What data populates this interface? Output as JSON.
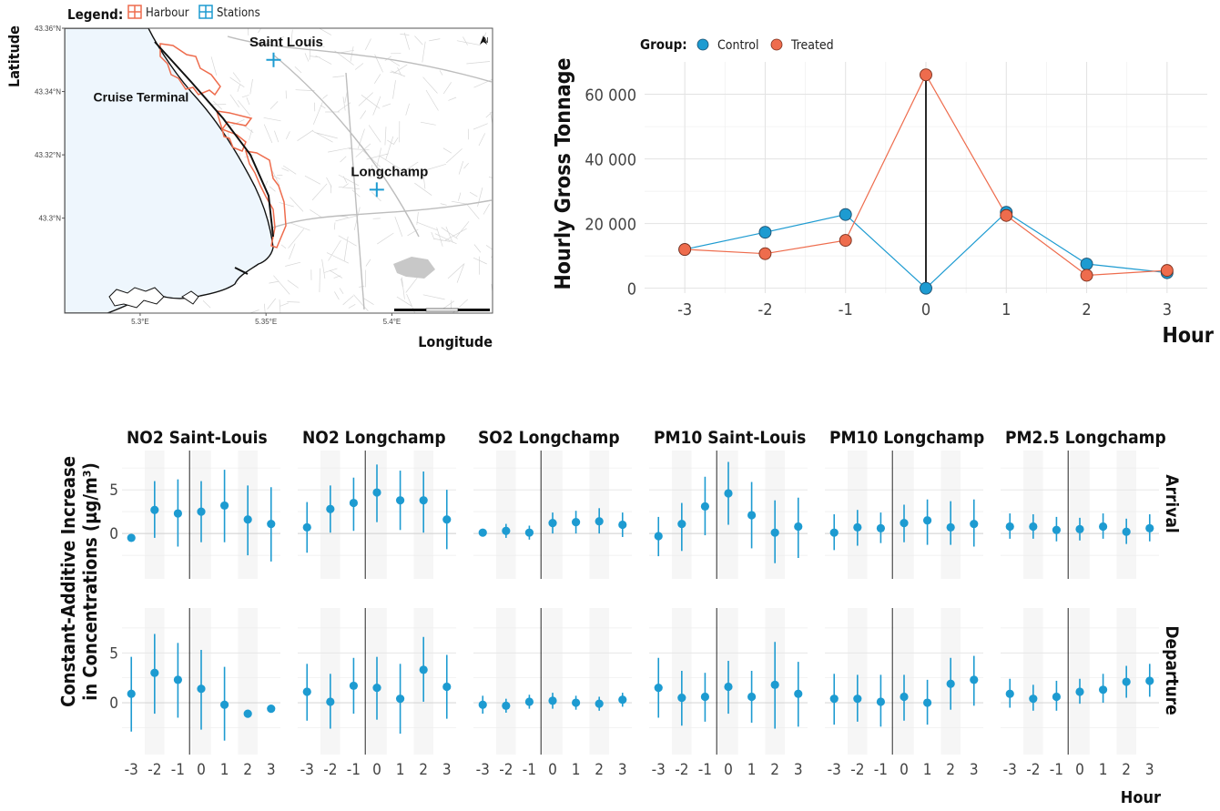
{
  "chart_data": [
    {
      "type": "map",
      "legend": {
        "title": "Legend:",
        "entries": [
          {
            "name": "Harbour",
            "color": "#ee6c4d"
          },
          {
            "name": "Stations",
            "color": "#1d9bd1"
          }
        ],
        "placement": "top-left"
      },
      "xlabel": "Longitude",
      "ylabel": "Latitude",
      "lon_ticks": [
        "5.3°E",
        "5.35°E",
        "5.4°E"
      ],
      "lat_ticks": [
        "43.36°N",
        "43.34°N",
        "43.32°N",
        "43.3°N"
      ],
      "xlim": [
        5.27,
        5.44
      ],
      "ylim": [
        43.27,
        43.36
      ],
      "lon_tick_values": [
        5.3,
        5.35,
        5.4
      ],
      "lat_tick_values": [
        43.36,
        43.34,
        43.32,
        43.3
      ],
      "places": [
        {
          "name": "Saint Louis",
          "lon": 5.353,
          "lat": 43.35,
          "kind": "station"
        },
        {
          "name": "Longchamp",
          "lon": 5.394,
          "lat": 43.309,
          "kind": "station"
        },
        {
          "name": "Cruise Terminal",
          "lon": 5.3,
          "lat": 43.34,
          "kind": "place"
        }
      ],
      "north_arrow": "N",
      "colors": {
        "sea": "#eef6fd",
        "land": "#ffffff",
        "roads": "#d8d8d8"
      }
    },
    {
      "type": "line",
      "legend": {
        "title": "Group:",
        "placement": "top-left"
      },
      "x": [
        -3,
        -2,
        -1,
        0,
        1,
        2,
        3
      ],
      "series": [
        {
          "name": "Control",
          "color": "#1d9bd1",
          "values": [
            12000,
            17300,
            22800,
            0,
            23500,
            7500,
            4800
          ]
        },
        {
          "name": "Treated",
          "color": "#ee6c4d",
          "values": [
            12000,
            10700,
            14800,
            66000,
            22500,
            4000,
            5500
          ]
        }
      ],
      "xlabel": "Hour",
      "ylabel": "Hourly Gross Tonnage",
      "ylim": [
        -1500,
        70000
      ],
      "yticks": [
        0,
        20000,
        40000,
        60000
      ],
      "ytick_labels": [
        "0",
        "20 000",
        "40 000",
        "60 000"
      ],
      "xtick_labels": [
        "-3",
        "-2",
        "-1",
        "0",
        "1",
        "2",
        "3"
      ],
      "vline_x": 0,
      "grid": true
    },
    {
      "type": "scatter",
      "subtype": "pointrange-facets",
      "xlabel": "Hour",
      "ylabel_line1": "Constant-Additive Increase",
      "ylabel_line2": "in Concentrations (µg/m³)",
      "columns": [
        "NO2 Saint-Louis",
        "NO2 Longchamp",
        "SO2 Longchamp",
        "PM10 Saint-Louis",
        "PM10 Longchamp",
        "PM2.5 Longchamp"
      ],
      "rows": [
        "Arrival",
        "Departure"
      ],
      "x": [
        -3,
        -2,
        -1,
        0,
        1,
        2,
        3
      ],
      "xtick_labels": [
        "-3",
        "-2",
        "-1",
        "0",
        "1",
        "2",
        "3"
      ],
      "yticks": [
        0,
        5
      ],
      "ytick_labels": [
        "0",
        "5"
      ],
      "ylim": [
        -5.2,
        9.5
      ],
      "color": "#1d9bd1",
      "panels": [
        {
          "column": "NO2 Saint-Louis",
          "row": "Arrival",
          "estimates": [
            -0.5,
            2.7,
            2.3,
            2.5,
            3.2,
            1.6,
            1.1
          ],
          "lower": [
            -0.5,
            -0.5,
            -1.5,
            -1.0,
            -1.0,
            -2.5,
            -3.2
          ],
          "upper": [
            -0.5,
            6.0,
            6.2,
            6.0,
            7.3,
            5.5,
            5.3
          ]
        },
        {
          "column": "NO2 Longchamp",
          "row": "Arrival",
          "estimates": [
            0.7,
            2.8,
            3.5,
            4.7,
            3.8,
            3.8,
            1.6
          ],
          "lower": [
            -2.2,
            0.1,
            0.3,
            1.3,
            0.4,
            0.1,
            -1.8
          ],
          "upper": [
            3.6,
            5.5,
            6.4,
            7.9,
            7.2,
            7.1,
            5.0
          ]
        },
        {
          "column": "SO2 Longchamp",
          "row": "Arrival",
          "estimates": [
            0.1,
            0.3,
            0.1,
            1.2,
            1.3,
            1.4,
            1.0
          ],
          "lower": [
            -0.3,
            -0.5,
            -0.7,
            0.0,
            0.0,
            0.0,
            -0.4
          ],
          "upper": [
            0.5,
            1.1,
            0.9,
            2.4,
            2.6,
            2.9,
            2.4
          ]
        },
        {
          "column": "PM10 Saint-Louis",
          "row": "Arrival",
          "estimates": [
            -0.3,
            1.1,
            3.1,
            4.6,
            2.1,
            0.1,
            0.8
          ],
          "lower": [
            -2.6,
            -2.0,
            -0.2,
            1.0,
            -1.7,
            -3.4,
            -2.8
          ],
          "upper": [
            1.9,
            3.5,
            6.5,
            8.2,
            5.9,
            3.8,
            4.1
          ]
        },
        {
          "column": "PM10 Longchamp",
          "row": "Arrival",
          "estimates": [
            0.1,
            0.7,
            0.6,
            1.2,
            1.5,
            0.7,
            1.1
          ],
          "lower": [
            -1.9,
            -1.4,
            -1.1,
            -1.0,
            -1.3,
            -1.3,
            -1.5
          ],
          "upper": [
            2.2,
            2.7,
            2.4,
            3.3,
            3.9,
            3.7,
            3.9
          ]
        },
        {
          "column": "PM2.5 Longchamp",
          "row": "Arrival",
          "estimates": [
            0.8,
            0.8,
            0.4,
            0.5,
            0.8,
            0.2,
            0.6
          ],
          "lower": [
            -0.6,
            -0.6,
            -0.9,
            -0.8,
            -0.6,
            -1.2,
            -0.9
          ],
          "upper": [
            2.3,
            2.2,
            1.9,
            1.8,
            2.3,
            1.7,
            2.2
          ]
        },
        {
          "column": "NO2 Saint-Louis",
          "row": "Departure",
          "estimates": [
            0.9,
            3.0,
            2.3,
            1.4,
            -0.2,
            -1.1,
            -0.6
          ],
          "lower": [
            -2.9,
            -1.1,
            -1.5,
            -2.7,
            -3.8,
            -1.1,
            -0.6
          ],
          "upper": [
            4.6,
            6.9,
            6.0,
            5.3,
            3.6,
            -1.1,
            -0.6
          ]
        },
        {
          "column": "NO2 Longchamp",
          "row": "Departure",
          "estimates": [
            1.1,
            0.1,
            1.7,
            1.5,
            0.4,
            3.3,
            1.6
          ],
          "lower": [
            -1.8,
            -2.6,
            -1.1,
            -1.7,
            -3.1,
            0.1,
            -1.6
          ],
          "upper": [
            3.9,
            2.9,
            4.5,
            4.6,
            3.9,
            6.6,
            4.8
          ]
        },
        {
          "column": "SO2 Longchamp",
          "row": "Departure",
          "estimates": [
            -0.2,
            -0.3,
            0.1,
            0.2,
            0.0,
            -0.1,
            0.3
          ],
          "lower": [
            -1.1,
            -1.0,
            -0.6,
            -0.6,
            -0.7,
            -0.8,
            -0.4
          ],
          "upper": [
            0.7,
            0.4,
            0.8,
            1.0,
            0.7,
            0.6,
            1.0
          ]
        },
        {
          "column": "PM10 Saint-Louis",
          "row": "Departure",
          "estimates": [
            1.5,
            0.5,
            0.6,
            1.6,
            0.6,
            1.8,
            0.9
          ],
          "lower": [
            -1.5,
            -2.3,
            -1.9,
            -1.1,
            -2.0,
            -2.6,
            -2.4
          ],
          "upper": [
            4.5,
            3.2,
            3.0,
            4.2,
            3.2,
            6.1,
            4.1
          ]
        },
        {
          "column": "PM10 Longchamp",
          "row": "Departure",
          "estimates": [
            0.4,
            0.4,
            0.1,
            0.6,
            0.0,
            1.9,
            2.3
          ],
          "lower": [
            -2.2,
            -1.9,
            -2.4,
            -1.8,
            -2.2,
            -0.7,
            -0.3
          ],
          "upper": [
            2.9,
            2.8,
            2.8,
            2.8,
            2.3,
            4.5,
            4.7
          ]
        },
        {
          "column": "PM2.5 Longchamp",
          "row": "Departure",
          "estimates": [
            0.9,
            0.4,
            0.6,
            1.1,
            1.3,
            2.1,
            2.2
          ],
          "lower": [
            -0.5,
            -0.8,
            -0.8,
            -0.1,
            0.0,
            0.5,
            0.6
          ],
          "upper": [
            2.4,
            1.8,
            2.2,
            2.4,
            2.9,
            3.7,
            3.9
          ]
        }
      ]
    }
  ]
}
